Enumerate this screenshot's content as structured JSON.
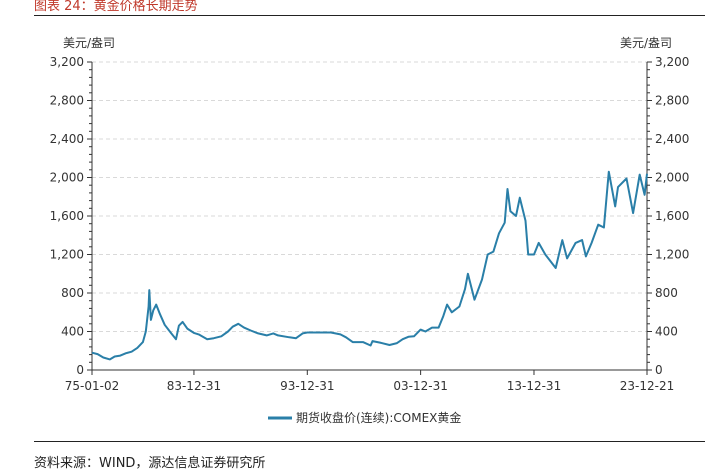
{
  "figure": {
    "title": "图表 24：黄金价格长期走势",
    "source": "资料来源：WIND，源达信息证券研究所"
  },
  "chart_data": {
    "type": "line",
    "yunit_left": "美元/盎司",
    "yunit_right": "美元/盎司",
    "ylim": [
      0,
      3200
    ],
    "yticks": [
      0,
      400,
      800,
      1200,
      1600,
      2000,
      2400,
      2800,
      3200
    ],
    "ytick_labels": [
      "0",
      "400",
      "800",
      "1,200",
      "1,600",
      "2,000",
      "2,400",
      "2,800",
      "3,200"
    ],
    "xticks": [
      "1975-01-02",
      "1983-12-31",
      "1993-12-31",
      "2003-12-31",
      "2013-12-31",
      "2023-12-21"
    ],
    "xtick_labels": [
      "75-01-02",
      "83-12-31",
      "93-12-31",
      "03-12-31",
      "13-12-31",
      "23-12-21"
    ],
    "x_range": [
      "1975-01-02",
      "2023-12-21"
    ],
    "grid": true,
    "legend_position": "bottom",
    "colors": {
      "line": "#2a7fa8",
      "grid": "#d9d9d9",
      "axis": "#333333"
    },
    "series": [
      {
        "name": "期货收盘价(连续):COMEX黄金",
        "x": [
          "1975-01-02",
          "1975-07-01",
          "1976-01-01",
          "1976-08-01",
          "1977-01-01",
          "1977-07-01",
          "1978-01-01",
          "1978-07-01",
          "1979-01-01",
          "1979-07-01",
          "1979-10-01",
          "1980-01-01",
          "1980-01-21",
          "1980-03-15",
          "1980-06-01",
          "1980-09-01",
          "1981-01-01",
          "1981-06-01",
          "1982-01-01",
          "1982-06-01",
          "1982-09-01",
          "1983-01-01",
          "1983-06-01",
          "1983-12-31",
          "1984-06-01",
          "1985-03-01",
          "1985-10-01",
          "1986-06-01",
          "1987-01-01",
          "1987-06-01",
          "1987-12-01",
          "1988-06-01",
          "1989-01-01",
          "1989-09-01",
          "1990-06-01",
          "1991-01-01",
          "1991-06-01",
          "1992-06-01",
          "1993-01-01",
          "1993-08-01",
          "1993-12-31",
          "1994-06-01",
          "1995-06-01",
          "1996-02-01",
          "1996-12-01",
          "1997-06-01",
          "1998-01-01",
          "1998-12-01",
          "1999-08-01",
          "1999-10-01",
          "2000-06-01",
          "2001-04-01",
          "2001-12-01",
          "2002-06-01",
          "2002-12-01",
          "2003-06-01",
          "2003-12-31",
          "2004-06-01",
          "2005-01-01",
          "2005-08-01",
          "2006-01-01",
          "2006-05-01",
          "2006-10-01",
          "2007-06-01",
          "2007-12-01",
          "2008-03-01",
          "2008-10-01",
          "2009-06-01",
          "2009-12-01",
          "2010-06-01",
          "2010-12-01",
          "2011-06-01",
          "2011-09-01",
          "2011-12-01",
          "2012-06-01",
          "2012-10-01",
          "2013-04-01",
          "2013-06-28",
          "2013-12-31",
          "2014-06-01",
          "2015-01-01",
          "2015-12-01",
          "2016-07-01",
          "2016-12-01",
          "2017-09-01",
          "2018-04-01",
          "2018-08-01",
          "2019-02-01",
          "2019-09-01",
          "2020-03-01",
          "2020-08-06",
          "2021-03-01",
          "2021-06-01",
          "2022-03-01",
          "2022-09-28",
          "2023-05-01",
          "2023-10-05",
          "2023-12-21"
        ],
        "values": [
          180,
          165,
          130,
          110,
          140,
          150,
          175,
          190,
          230,
          290,
          400,
          660,
          830,
          520,
          620,
          680,
          580,
          470,
          380,
          320,
          460,
          500,
          430,
          385,
          370,
          320,
          330,
          350,
          400,
          450,
          480,
          440,
          410,
          380,
          360,
          380,
          360,
          340,
          330,
          380,
          390,
          390,
          390,
          390,
          370,
          340,
          290,
          290,
          255,
          300,
          285,
          260,
          280,
          320,
          345,
          350,
          420,
          400,
          440,
          440,
          560,
          680,
          600,
          660,
          840,
          1000,
          730,
          940,
          1200,
          1230,
          1420,
          1530,
          1880,
          1650,
          1600,
          1790,
          1550,
          1200,
          1200,
          1320,
          1200,
          1060,
          1350,
          1160,
          1320,
          1350,
          1180,
          1320,
          1510,
          1480,
          2060,
          1700,
          1900,
          1990,
          1630,
          2030,
          1820,
          2040
        ]
      }
    ]
  }
}
